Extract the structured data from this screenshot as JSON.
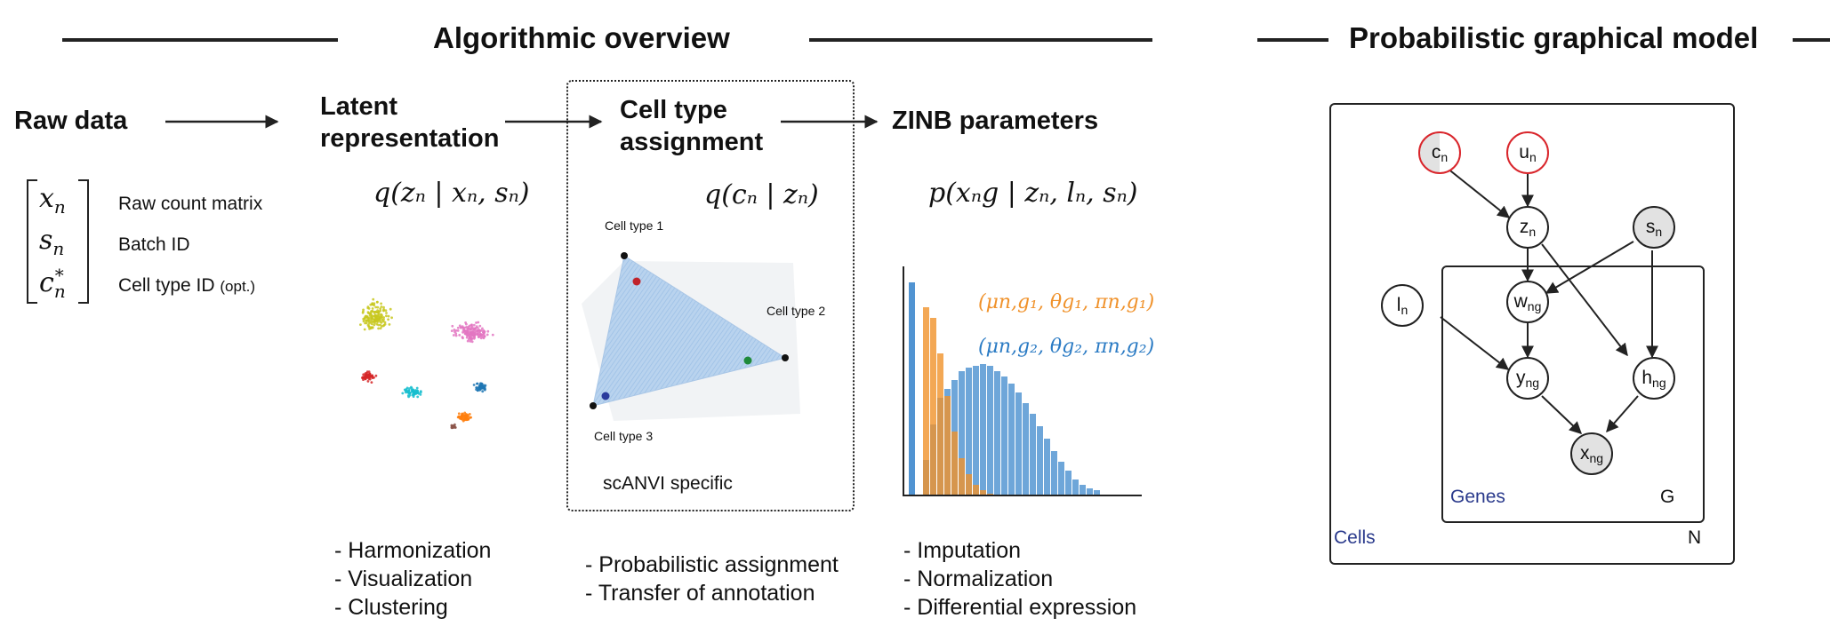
{
  "headers": {
    "algorithmic": "Algorithmic overview",
    "pgm": "Probabilistic graphical model"
  },
  "raw": {
    "title": "Raw data",
    "vars": [
      "x",
      "s",
      "c"
    ],
    "var_subs": [
      "n",
      "n",
      "n"
    ],
    "var_sup": "*",
    "labels": [
      "Raw count matrix",
      "Batch ID",
      "Cell type ID"
    ],
    "opt": "(opt.)"
  },
  "latent": {
    "title_line1": "Latent",
    "title_line2": "representation",
    "formula": "q(zₙ | xₙ, sₙ)",
    "bullets": [
      "- Harmonization",
      "- Visualization",
      "- Clustering"
    ]
  },
  "celltype": {
    "title_line1": "Cell type",
    "title_line2": "assignment",
    "formula": "q(cₙ | zₙ)",
    "vertex_labels": [
      "Cell type 1",
      "Cell type 2",
      "Cell type 3"
    ],
    "note": "scANVI specific",
    "bullets": [
      "- Probabilistic assignment",
      "- Transfer of annotation"
    ]
  },
  "zinb": {
    "title": "ZINB parameters",
    "formula": "p(xₙg | zₙ, lₙ, sₙ)",
    "param1": "(μn,g₁, θg₁, πn,g₁)",
    "param2": "(μn,g₂, θg₂, πn,g₂)",
    "bullets": [
      "- Imputation",
      "- Normalization",
      "- Differential expression"
    ]
  },
  "pgm": {
    "nodes": [
      {
        "main": "c",
        "sub": "n"
      },
      {
        "main": "u",
        "sub": "n"
      },
      {
        "main": "z",
        "sub": "n"
      },
      {
        "main": "s",
        "sub": "n"
      },
      {
        "main": "l",
        "sub": "n"
      },
      {
        "main": "w",
        "sub": "ng"
      },
      {
        "main": "y",
        "sub": "ng"
      },
      {
        "main": "h",
        "sub": "ng"
      },
      {
        "main": "x",
        "sub": "ng"
      }
    ],
    "plate_genes": "Genes",
    "plate_genes_count": "G",
    "plate_cells": "Cells",
    "plate_cells_count": "N"
  },
  "colors": {
    "orange": "#f0922b",
    "blue": "#4a90d0",
    "node_red": "#d9262c",
    "plate_label": "#2a3a8c",
    "node_fill": "#e2e2e2"
  }
}
